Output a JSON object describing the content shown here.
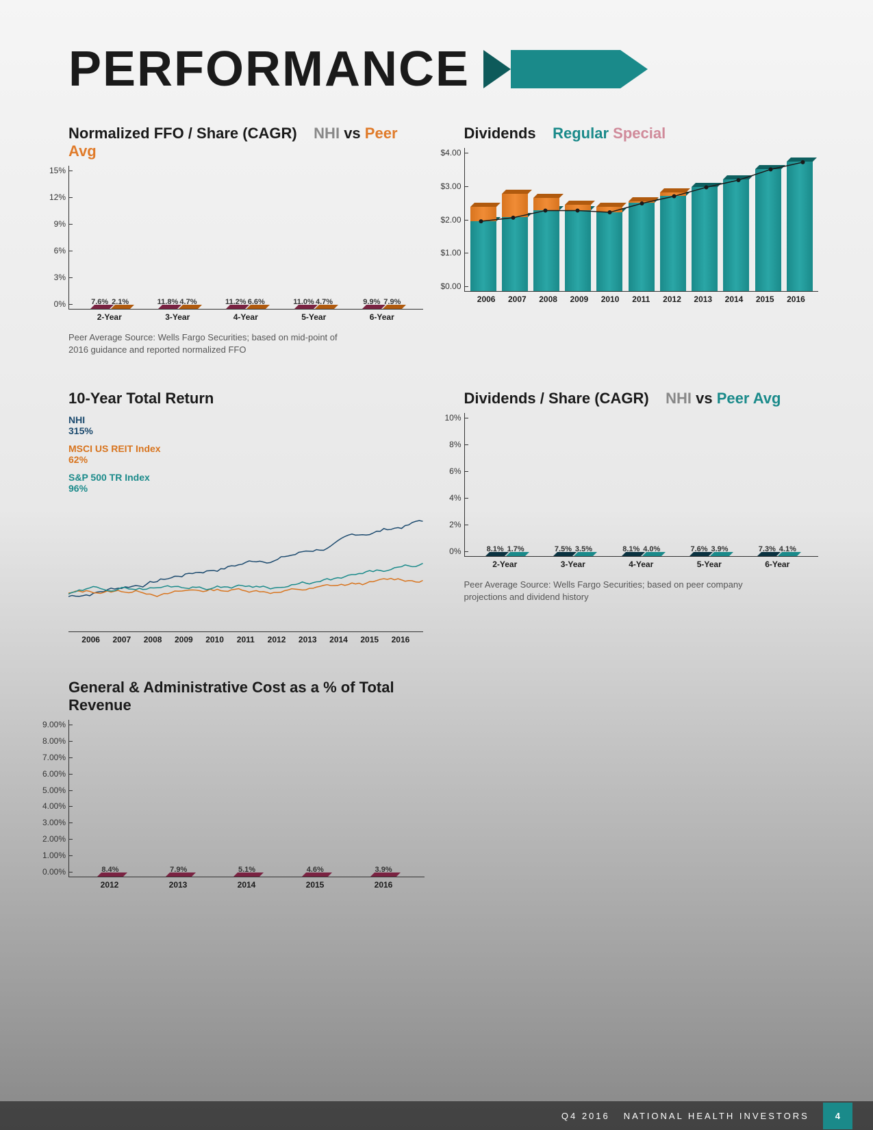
{
  "page_title": "PERFORMANCE",
  "footer": {
    "period": "Q4 2016",
    "company": "NATIONAL HEALTH INVESTORS",
    "page": "4"
  },
  "ffo_chart": {
    "title_main": "Normalized FFO / Share (CAGR)",
    "title_a": "NHI",
    "title_mid": "vs",
    "title_b": "Peer Avg",
    "ylim": [
      0,
      15
    ],
    "ytick_step": 3,
    "ytick_suffix": "%",
    "categories": [
      "2-Year",
      "3-Year",
      "4-Year",
      "5-Year",
      "6-Year"
    ],
    "series_nhi": {
      "values": [
        7.6,
        11.8,
        11.2,
        11.0,
        9.9
      ],
      "labels": [
        "7.6%",
        "11.8%",
        "11.2%",
        "11.0%",
        "9.9%"
      ],
      "color": "#a8355a",
      "color_light": "#c14d72",
      "top": "#7a2342"
    },
    "series_peer": {
      "values": [
        2.1,
        4.7,
        6.6,
        4.7,
        7.9
      ],
      "labels": [
        "2.1%",
        "4.7%",
        "6.6%",
        "4.7%",
        "7.9%"
      ],
      "color": "#d8741e",
      "color_light": "#f08c36",
      "top": "#b05a0e"
    },
    "caption": "Peer Average Source: Wells Fargo Securities; based on mid-point of 2016 guidance and reported normalized FFO"
  },
  "dividends_chart": {
    "title_main": "Dividends",
    "title_a": "Regular",
    "title_b": "Special",
    "ylim": [
      0,
      4
    ],
    "ytick_step": 1,
    "ytick_prefix": "$",
    "ytick_decimals": 2,
    "categories": [
      "2006",
      "2007",
      "2008",
      "2009",
      "2010",
      "2011",
      "2012",
      "2013",
      "2014",
      "2015",
      "2016"
    ],
    "regular": {
      "values": [
        1.95,
        2.05,
        2.25,
        2.25,
        2.2,
        2.45,
        2.65,
        2.9,
        3.1,
        3.4,
        3.6
      ],
      "color": "#1a8a8a",
      "color_light": "#2aa6a6",
      "top": "#0e6060"
    },
    "special": {
      "values": [
        0.4,
        0.65,
        0.35,
        0.15,
        0.15,
        0.05,
        0.1,
        0,
        0,
        0,
        0
      ],
      "color": "#d8741e",
      "color_light": "#f08c36",
      "top": "#b05a0e"
    },
    "line_color": "#1a1a1a"
  },
  "total_return": {
    "title": "10-Year Total Return",
    "legend": [
      {
        "name": "NHI",
        "value": "315%",
        "color": "#1c4a6e"
      },
      {
        "name": "MSCI US REIT Index",
        "value": "62%",
        "color": "#d8741e"
      },
      {
        "name": "S&P 500 TR Index",
        "value": "96%",
        "color": "#1a8a8a"
      }
    ],
    "x_labels": [
      "2006",
      "2007",
      "2008",
      "2009",
      "2010",
      "2011",
      "2012",
      "2013",
      "2014",
      "2015",
      "2016"
    ]
  },
  "div_cagr_chart": {
    "title_main": "Dividends / Share (CAGR)",
    "title_a": "NHI",
    "title_mid": "vs",
    "title_b": "Peer Avg",
    "ylim": [
      0,
      10
    ],
    "ytick_step": 2,
    "ytick_suffix": "%",
    "categories": [
      "2-Year",
      "3-Year",
      "4-Year",
      "5-Year",
      "6-Year"
    ],
    "series_nhi": {
      "values": [
        8.1,
        7.5,
        8.1,
        7.6,
        7.3
      ],
      "labels": [
        "8.1%",
        "7.5%",
        "8.1%",
        "7.6%",
        "7.3%"
      ],
      "color": "#124a5a",
      "color_light": "#1a6278",
      "top": "#0a3240"
    },
    "series_peer": {
      "values": [
        1.7,
        3.5,
        4.0,
        3.9,
        4.1
      ],
      "labels": [
        "1.7%",
        "3.5%",
        "4.0%",
        "3.9%",
        "4.1%"
      ],
      "color": "#2aa6a6",
      "color_light": "#3ec0c0",
      "top": "#1a8a8a"
    },
    "caption": "Peer Average Source: Wells Fargo Securities; based on peer company projections and dividend history"
  },
  "ga_chart": {
    "title": "General & Administrative Cost as a % of Total Revenue",
    "ylim": [
      0,
      9
    ],
    "ytick_step": 1,
    "ytick_suffix": "%",
    "ytick_decimals": 2,
    "categories": [
      "2012",
      "2013",
      "2014",
      "2015",
      "2016"
    ],
    "values": [
      8.4,
      7.9,
      5.1,
      4.6,
      3.9
    ],
    "labels": [
      "8.4%",
      "7.9%",
      "5.1%",
      "4.6%",
      "3.9%"
    ],
    "color": "#a8355a",
    "color_light": "#c14d72",
    "top": "#7a2342"
  }
}
